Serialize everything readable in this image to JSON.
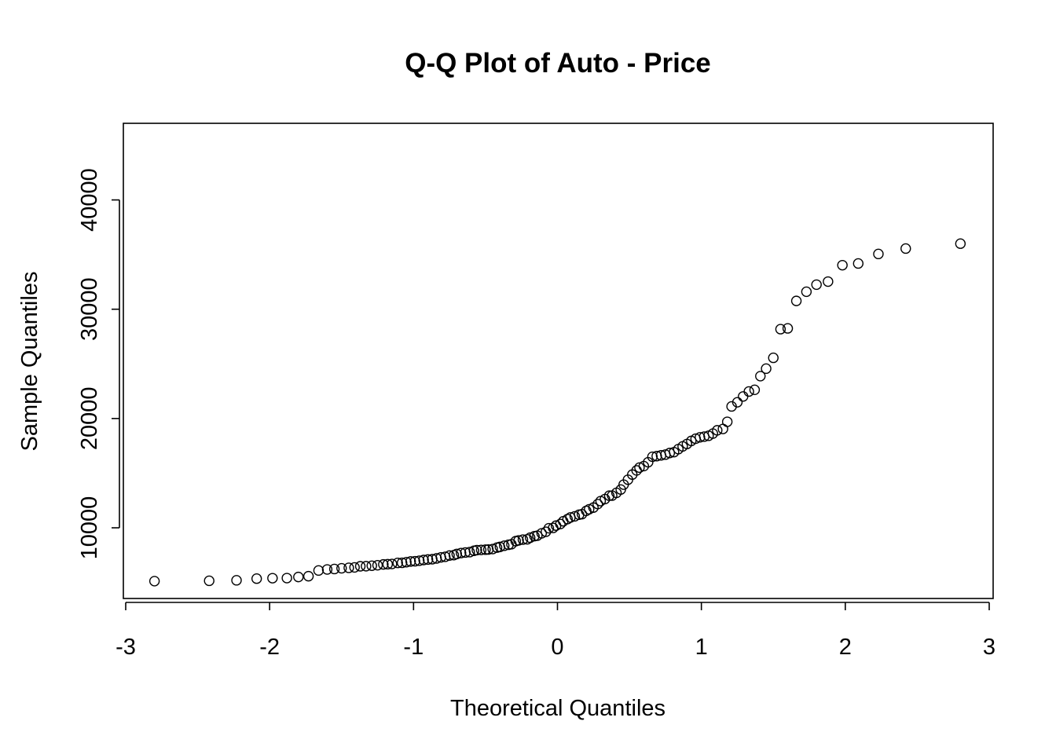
{
  "chart_data": {
    "type": "scatter",
    "title": "Q-Q Plot of Auto - Price",
    "xlabel": "Theoretical Quantiles",
    "ylabel": "Sample Quantiles",
    "xlim": [
      -3,
      3
    ],
    "ylim": [
      3500,
      47500
    ],
    "x_ticks": [
      -3,
      -2,
      -1,
      0,
      1,
      2,
      3
    ],
    "x_tick_labels": [
      "-3",
      "-2",
      "-1",
      "0",
      "1",
      "2",
      "3"
    ],
    "y_ticks": [
      10000,
      20000,
      30000,
      40000
    ],
    "y_tick_labels": [
      "10000",
      "20000",
      "30000",
      "40000"
    ],
    "grid": false,
    "legend": "none",
    "marker": "open-circle",
    "points": [
      [
        -2.8,
        5118
      ],
      [
        -2.42,
        5151
      ],
      [
        -2.23,
        5195
      ],
      [
        -2.09,
        5348
      ],
      [
        -1.98,
        5389
      ],
      [
        -1.88,
        5399
      ],
      [
        -1.8,
        5499
      ],
      [
        -1.73,
        5572
      ],
      [
        -1.66,
        6095
      ],
      [
        -1.6,
        6189
      ],
      [
        -1.55,
        6229
      ],
      [
        -1.5,
        6295
      ],
      [
        -1.45,
        6338
      ],
      [
        -1.41,
        6377
      ],
      [
        -1.37,
        6479
      ],
      [
        -1.33,
        6488
      ],
      [
        -1.29,
        6529
      ],
      [
        -1.25,
        6575
      ],
      [
        -1.21,
        6649
      ],
      [
        -1.18,
        6669
      ],
      [
        -1.15,
        6692
      ],
      [
        -1.11,
        6785
      ],
      [
        -1.08,
        6795
      ],
      [
        -1.05,
        6855
      ],
      [
        -1.02,
        6918
      ],
      [
        -0.99,
        6938
      ],
      [
        -0.96,
        6989
      ],
      [
        -0.93,
        7053
      ],
      [
        -0.9,
        7099
      ],
      [
        -0.87,
        7126
      ],
      [
        -0.84,
        7198
      ],
      [
        -0.81,
        7295
      ],
      [
        -0.78,
        7349
      ],
      [
        -0.75,
        7463
      ],
      [
        -0.72,
        7499
      ],
      [
        -0.7,
        7603
      ],
      [
        -0.67,
        7689
      ],
      [
        -0.64,
        7738
      ],
      [
        -0.61,
        7775
      ],
      [
        -0.58,
        7898
      ],
      [
        -0.56,
        7957
      ],
      [
        -0.53,
        7975
      ],
      [
        -0.5,
        7999
      ],
      [
        -0.48,
        8013
      ],
      [
        -0.45,
        8058
      ],
      [
        -0.42,
        8189
      ],
      [
        -0.4,
        8249
      ],
      [
        -0.37,
        8358
      ],
      [
        -0.34,
        8449
      ],
      [
        -0.32,
        8495
      ],
      [
        -0.29,
        8778
      ],
      [
        -0.27,
        8845
      ],
      [
        -0.24,
        8921
      ],
      [
        -0.21,
        8948
      ],
      [
        -0.19,
        9095
      ],
      [
        -0.16,
        9233
      ],
      [
        -0.14,
        9279
      ],
      [
        -0.11,
        9495
      ],
      [
        -0.08,
        9639
      ],
      [
        -0.06,
        9960
      ],
      [
        -0.03,
        9989
      ],
      [
        -0.01,
        10198
      ],
      [
        0.02,
        10345
      ],
      [
        0.04,
        10595
      ],
      [
        0.07,
        10795
      ],
      [
        0.09,
        10945
      ],
      [
        0.12,
        11048
      ],
      [
        0.15,
        11199
      ],
      [
        0.17,
        11245
      ],
      [
        0.2,
        11549
      ],
      [
        0.22,
        11694
      ],
      [
        0.25,
        11850
      ],
      [
        0.28,
        12170
      ],
      [
        0.3,
        12440
      ],
      [
        0.33,
        12629
      ],
      [
        0.36,
        12940
      ],
      [
        0.38,
        12945
      ],
      [
        0.41,
        13200
      ],
      [
        0.44,
        13499
      ],
      [
        0.46,
        13950
      ],
      [
        0.49,
        14399
      ],
      [
        0.52,
        14869
      ],
      [
        0.55,
        15250
      ],
      [
        0.57,
        15510
      ],
      [
        0.6,
        15645
      ],
      [
        0.63,
        15998
      ],
      [
        0.66,
        16500
      ],
      [
        0.69,
        16558
      ],
      [
        0.72,
        16630
      ],
      [
        0.75,
        16695
      ],
      [
        0.78,
        16845
      ],
      [
        0.81,
        16925
      ],
      [
        0.84,
        17199
      ],
      [
        0.87,
        17450
      ],
      [
        0.9,
        17669
      ],
      [
        0.93,
        17950
      ],
      [
        0.96,
        18150
      ],
      [
        0.99,
        18280
      ],
      [
        1.02,
        18344
      ],
      [
        1.05,
        18420
      ],
      [
        1.08,
        18620
      ],
      [
        1.11,
        18920
      ],
      [
        1.15,
        19045
      ],
      [
        1.18,
        19699
      ],
      [
        1.21,
        21105
      ],
      [
        1.25,
        21485
      ],
      [
        1.29,
        22018
      ],
      [
        1.33,
        22470
      ],
      [
        1.37,
        22625
      ],
      [
        1.41,
        23875
      ],
      [
        1.45,
        24565
      ],
      [
        1.5,
        25552
      ],
      [
        1.55,
        28176
      ],
      [
        1.6,
        28248
      ],
      [
        1.66,
        30760
      ],
      [
        1.73,
        31600
      ],
      [
        1.8,
        32250
      ],
      [
        1.88,
        32528
      ],
      [
        1.98,
        34028
      ],
      [
        2.09,
        34184
      ],
      [
        2.23,
        35056
      ],
      [
        2.42,
        35550
      ],
      [
        2.8,
        36000
      ]
    ]
  }
}
